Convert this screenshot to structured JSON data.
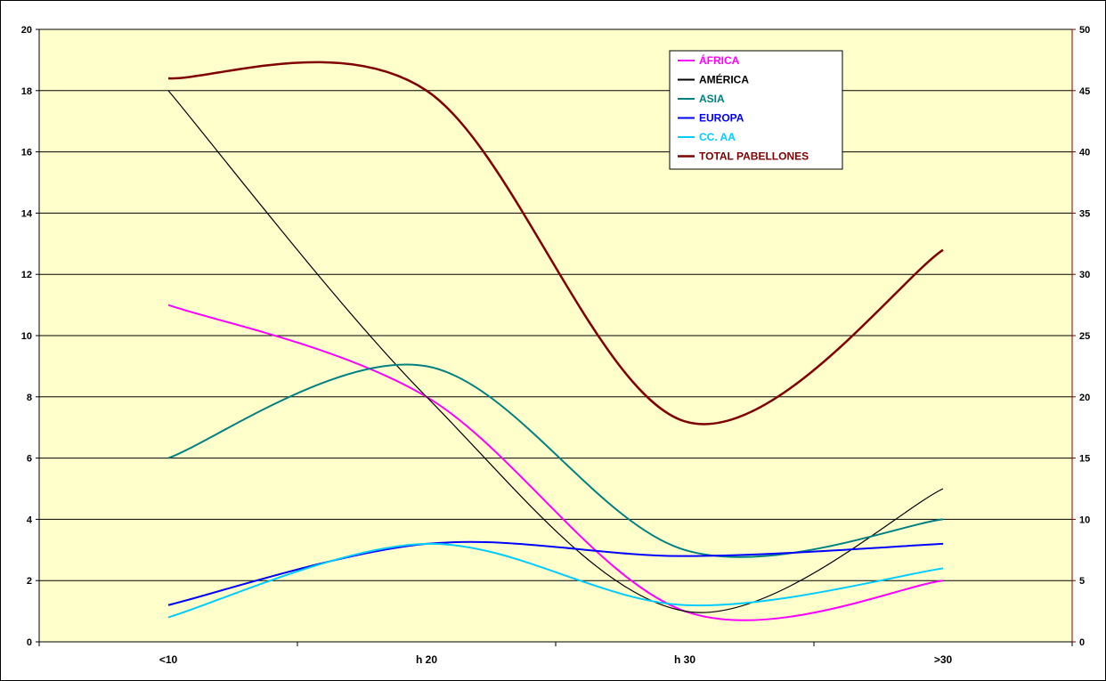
{
  "chart_data": {
    "type": "line",
    "title": "",
    "categories": [
      "<10",
      "h 20",
      "h 30",
      ">30"
    ],
    "y_left": {
      "min": 0,
      "max": 20,
      "step": 2,
      "color": "#000000"
    },
    "y_right": {
      "min": 0,
      "max": 50,
      "step": 5,
      "color": "#800000"
    },
    "grid": true,
    "plot_background": "#ffffcc",
    "legend_position": "top-right",
    "smooth": true,
    "series": [
      {
        "name": "ÁFRICA",
        "color": "#ff00ff",
        "axis": "left",
        "values": [
          11,
          8,
          1,
          2
        ]
      },
      {
        "name": "AMÉRICA",
        "color": "#000000",
        "axis": "left",
        "values": [
          18,
          8,
          1,
          5
        ]
      },
      {
        "name": "ASIA",
        "color": "#008080",
        "axis": "left",
        "values": [
          6,
          9,
          3,
          4
        ]
      },
      {
        "name": "EUROPA",
        "color": "#0000ff",
        "axis": "left",
        "values": [
          1.2,
          3.2,
          2.8,
          3.2
        ]
      },
      {
        "name": "CC. AA",
        "color": "#00ccff",
        "axis": "left",
        "values": [
          0.8,
          3.2,
          1.2,
          2.4
        ]
      },
      {
        "name": "TOTAL PABELLONES",
        "color": "#800000",
        "axis": "right",
        "values": [
          46,
          45,
          18,
          32
        ]
      }
    ]
  }
}
